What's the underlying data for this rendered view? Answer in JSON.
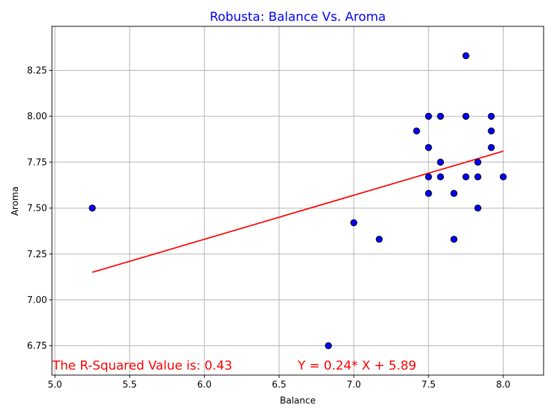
{
  "colors": {
    "title": "#0000ff",
    "point_fill": "#0000ff",
    "point_edge": "#000000",
    "fit_line": "#ff0000",
    "annotation": "#ff0000",
    "grid": "#b0b0b0"
  },
  "chart_data": {
    "type": "scatter",
    "title": "Robusta: Balance Vs. Aroma",
    "xlabel": "Balance",
    "ylabel": "Aroma",
    "xlim": [
      4.98,
      8.27
    ],
    "ylim": [
      6.59,
      8.49
    ],
    "grid": true,
    "xticks": [
      5.0,
      5.5,
      6.0,
      6.5,
      7.0,
      7.5,
      8.0
    ],
    "xtick_labels": [
      "5.0",
      "5.5",
      "6.0",
      "6.5",
      "7.0",
      "7.5",
      "8.0"
    ],
    "yticks": [
      6.75,
      7.0,
      7.25,
      7.5,
      7.75,
      8.0,
      8.25
    ],
    "ytick_labels": [
      "6.75",
      "7.00",
      "7.25",
      "7.50",
      "7.75",
      "8.00",
      "8.25"
    ],
    "points": [
      {
        "x": 5.25,
        "y": 7.5
      },
      {
        "x": 6.83,
        "y": 6.75
      },
      {
        "x": 7.0,
        "y": 7.42
      },
      {
        "x": 7.17,
        "y": 7.33
      },
      {
        "x": 7.42,
        "y": 7.92
      },
      {
        "x": 7.5,
        "y": 8.0
      },
      {
        "x": 7.5,
        "y": 7.83
      },
      {
        "x": 7.5,
        "y": 7.67
      },
      {
        "x": 7.5,
        "y": 7.58
      },
      {
        "x": 7.58,
        "y": 8.0
      },
      {
        "x": 7.58,
        "y": 7.75
      },
      {
        "x": 7.58,
        "y": 7.67
      },
      {
        "x": 7.67,
        "y": 7.58
      },
      {
        "x": 7.67,
        "y": 7.33
      },
      {
        "x": 7.75,
        "y": 8.33
      },
      {
        "x": 7.75,
        "y": 8.0
      },
      {
        "x": 7.75,
        "y": 7.67
      },
      {
        "x": 7.83,
        "y": 7.75
      },
      {
        "x": 7.83,
        "y": 7.67
      },
      {
        "x": 7.83,
        "y": 7.5
      },
      {
        "x": 7.92,
        "y": 8.0
      },
      {
        "x": 7.92,
        "y": 7.92
      },
      {
        "x": 7.92,
        "y": 7.83
      },
      {
        "x": 8.0,
        "y": 7.67
      }
    ],
    "regression": {
      "slope": 0.24,
      "intercept": 5.89,
      "x_start": 5.25,
      "x_end": 8.0
    },
    "annotations": {
      "r_squared": "The R-Squared Value is: 0.43",
      "equation": "Y = 0.24* X + 5.89"
    }
  }
}
